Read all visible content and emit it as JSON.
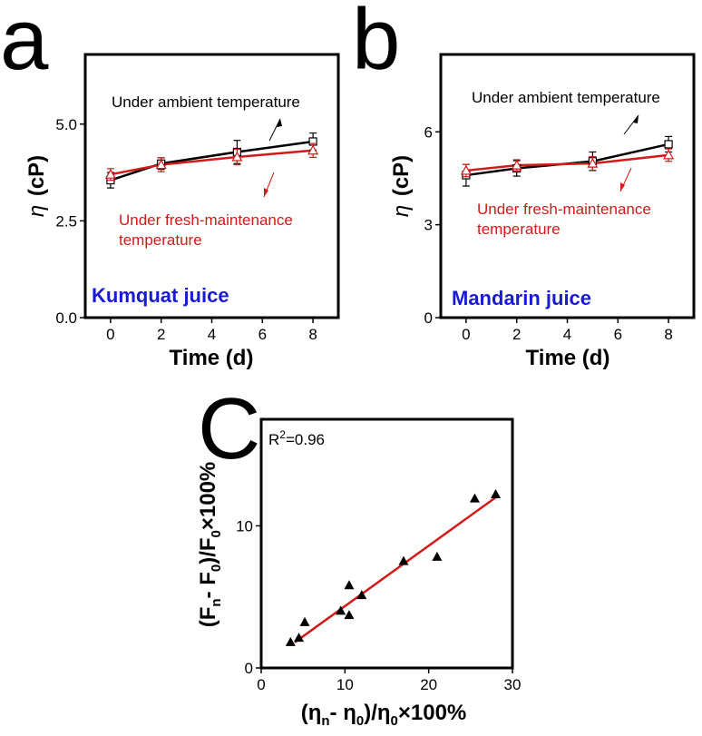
{
  "colors": {
    "ambient": "#000000",
    "fresh": "#d21a1a",
    "label_blue": "#1a1ad6",
    "fit_line": "#d21a1a"
  },
  "chart_data": [
    {
      "panel": "a",
      "type": "line",
      "title": "Kumquat juice",
      "xlabel": "Time (d)",
      "ylabel_symbol": "η",
      "ylabel_unit": "(cP)",
      "xlim": [
        -1,
        9
      ],
      "ylim": [
        0,
        6.8
      ],
      "xticks": [
        0,
        2,
        4,
        6,
        8
      ],
      "yticks": [
        0,
        2.5,
        5
      ],
      "ytick_labels": [
        "0.0",
        "2.5",
        "5.0"
      ],
      "series": [
        {
          "name": "Under ambient temperature",
          "marker": "square",
          "x": [
            0,
            2,
            5,
            8
          ],
          "y": [
            3.55,
            3.98,
            4.28,
            4.55
          ],
          "err": [
            0.2,
            0.15,
            0.3,
            0.22
          ]
        },
        {
          "name": "Under fresh-maintenance temperature",
          "marker": "triangle",
          "x": [
            0,
            2,
            5,
            8
          ],
          "y": [
            3.7,
            3.95,
            4.15,
            4.32
          ],
          "err": [
            0.15,
            0.18,
            0.2,
            0.18
          ]
        }
      ],
      "annotations": {
        "ambient_label": "Under ambient temperature",
        "fresh_label_line1": "Under fresh-maintenance",
        "fresh_label_line2": "temperature"
      }
    },
    {
      "panel": "b",
      "type": "line",
      "title": "Mandarin juice",
      "xlabel": "Time (d)",
      "ylabel_symbol": "η",
      "ylabel_unit": "(cP)",
      "xlim": [
        -1,
        9
      ],
      "ylim": [
        0,
        8.5
      ],
      "xticks": [
        0,
        2,
        4,
        6,
        8
      ],
      "yticks": [
        0,
        3,
        6
      ],
      "ytick_labels": [
        "0",
        "3",
        "6"
      ],
      "series": [
        {
          "name": "Under ambient temperature",
          "marker": "square",
          "x": [
            0,
            2,
            5,
            8
          ],
          "y": [
            4.6,
            4.82,
            5.05,
            5.6
          ],
          "err": [
            0.35,
            0.25,
            0.3,
            0.25
          ]
        },
        {
          "name": "Under fresh-maintenance temperature",
          "marker": "triangle",
          "x": [
            0,
            2,
            5,
            8
          ],
          "y": [
            4.75,
            4.92,
            4.98,
            5.25
          ],
          "err": [
            0.2,
            0.18,
            0.22,
            0.2
          ]
        }
      ],
      "annotations": {
        "ambient_label": "Under ambient temperature",
        "fresh_label_line1": "Under fresh-maintenance",
        "fresh_label_line2": "temperature"
      }
    },
    {
      "panel": "c",
      "type": "scatter",
      "xlabel": "(ηn- η0)/η0×100%",
      "ylabel": "(Fn- F0)/F0×100%",
      "xlim": [
        0,
        30
      ],
      "ylim": [
        0,
        17.5
      ],
      "xticks": [
        0,
        10,
        20,
        30
      ],
      "yticks": [
        0,
        10
      ],
      "r2_label": "R",
      "r2_sup": "2",
      "r2_value": "=0.96",
      "points": [
        [
          3.5,
          1.8
        ],
        [
          4.5,
          2.1
        ],
        [
          5.2,
          3.2
        ],
        [
          9.5,
          4.0
        ],
        [
          10.5,
          5.8
        ],
        [
          10.5,
          3.7
        ],
        [
          12.0,
          5.1
        ],
        [
          17.0,
          7.5
        ],
        [
          21.0,
          7.8
        ],
        [
          25.5,
          11.9
        ],
        [
          28.0,
          12.2
        ]
      ],
      "fit": {
        "x": [
          4.0,
          28.0
        ],
        "y": [
          1.8,
          12.0
        ]
      }
    }
  ],
  "panel_letters": {
    "a": "a",
    "b": "b",
    "c": "C"
  }
}
